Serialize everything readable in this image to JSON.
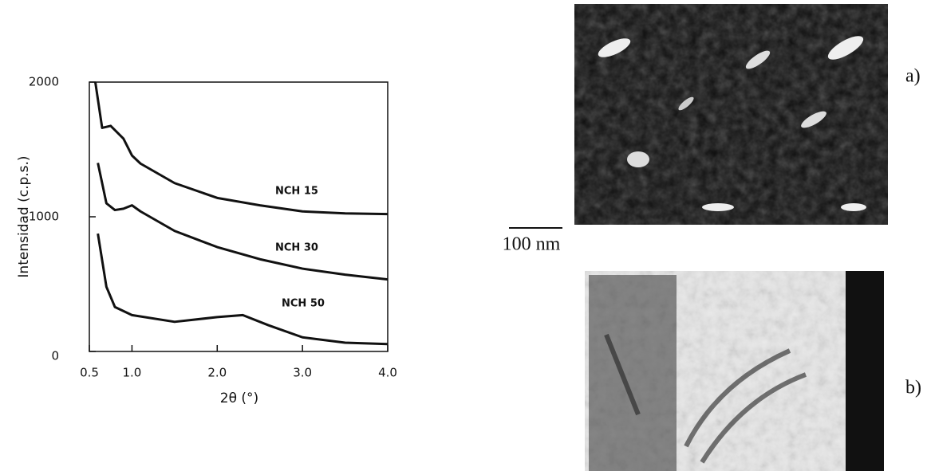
{
  "chart_data": {
    "type": "line",
    "y_label": "Intensidad (c.p.s.)",
    "x_label": "2θ (°)",
    "xlim": [
      0.5,
      4.0
    ],
    "ylim": [
      0,
      2000
    ],
    "xticks": [
      0.5,
      {
        "value": 1,
        "label": "1.0"
      },
      {
        "value": 2,
        "label": "2.0"
      },
      {
        "value": 3,
        "label": "3.0"
      },
      {
        "value": 4,
        "label": "4.0"
      }
    ],
    "yticks": [
      0,
      1000,
      2000
    ],
    "series": [
      {
        "name": "NCH 15",
        "color": "#111111",
        "x": [
          0.57,
          0.65,
          0.75,
          0.9,
          1.0,
          1.1,
          1.5,
          2.0,
          2.5,
          3.0,
          3.5,
          4.0
        ],
        "values": [
          2000,
          1660,
          1675,
          1580,
          1455,
          1395,
          1250,
          1140,
          1085,
          1040,
          1025,
          1020
        ]
      },
      {
        "name": "NCH 30",
        "color": "#111111",
        "x": [
          0.6,
          0.7,
          0.8,
          0.9,
          1.0,
          1.1,
          1.5,
          2.0,
          2.5,
          3.0,
          3.5,
          4.0
        ],
        "values": [
          1400,
          1100,
          1050,
          1060,
          1085,
          1040,
          895,
          775,
          685,
          615,
          570,
          535
        ]
      },
      {
        "name": "NCH 50",
        "color": "#111111",
        "x": [
          0.6,
          0.7,
          0.8,
          1.0,
          1.5,
          2.0,
          2.3,
          2.6,
          3.0,
          3.5,
          4.0
        ],
        "values": [
          875,
          480,
          330,
          270,
          220,
          255,
          270,
          195,
          105,
          65,
          55
        ]
      }
    ]
  },
  "figure": {
    "scale_bar": "100 nm",
    "panels": [
      "a)",
      "b)"
    ]
  }
}
